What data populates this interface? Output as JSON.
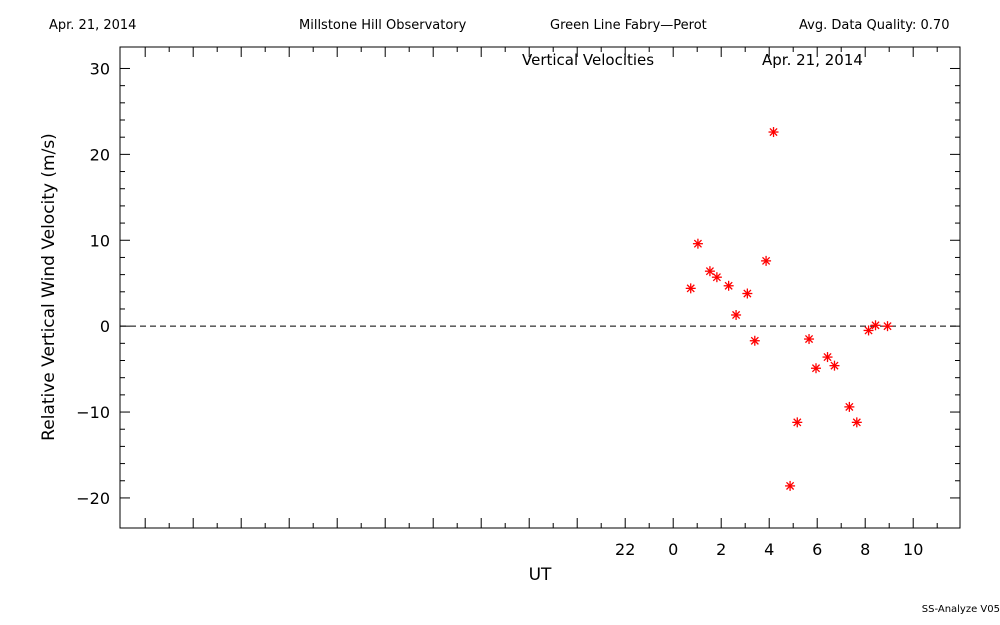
{
  "header": {
    "date": "Apr. 21, 2014",
    "observatory": "Millstone Hill Observatory",
    "instrument": "Green Line Fabry—Perot",
    "quality": "Avg. Data Quality: 0.70"
  },
  "footer": {
    "version": "SS-Analyze V05"
  },
  "chart_data": {
    "type": "scatter",
    "title": "Vertical Velocities",
    "subtitle": "Apr. 21, 2014",
    "xlabel": "UT",
    "ylabel": "Relative Vertical Wind Velocity (m/s)",
    "xlim": [
      -23.05,
      11.95
    ],
    "ylim": [
      -23.5,
      32.5
    ],
    "x_tick_labels": [
      "22",
      "0",
      "2",
      "4",
      "6",
      "8",
      "10"
    ],
    "y_tick_labels": [
      "−20",
      "−10",
      "0",
      "10",
      "20",
      "30"
    ],
    "reference_line": {
      "y": 0,
      "style": "dashed"
    },
    "marker": "asterisk",
    "marker_color": "#ff0000",
    "series": [
      {
        "x": [
          0.73,
          1.03,
          1.53,
          1.82,
          2.31,
          2.62,
          3.09,
          3.4,
          3.87,
          4.18,
          4.87,
          5.17,
          5.66,
          5.95,
          6.43,
          6.72,
          7.34,
          7.65,
          8.14,
          8.43,
          8.93
        ],
        "y": [
          4.4,
          9.6,
          6.4,
          5.7,
          4.7,
          1.3,
          3.8,
          -1.7,
          7.6,
          22.6,
          -18.6,
          -11.2,
          -1.5,
          -4.9,
          -3.6,
          -4.6,
          -9.4,
          -11.2,
          -0.5,
          0.1,
          0.0
        ]
      }
    ]
  }
}
